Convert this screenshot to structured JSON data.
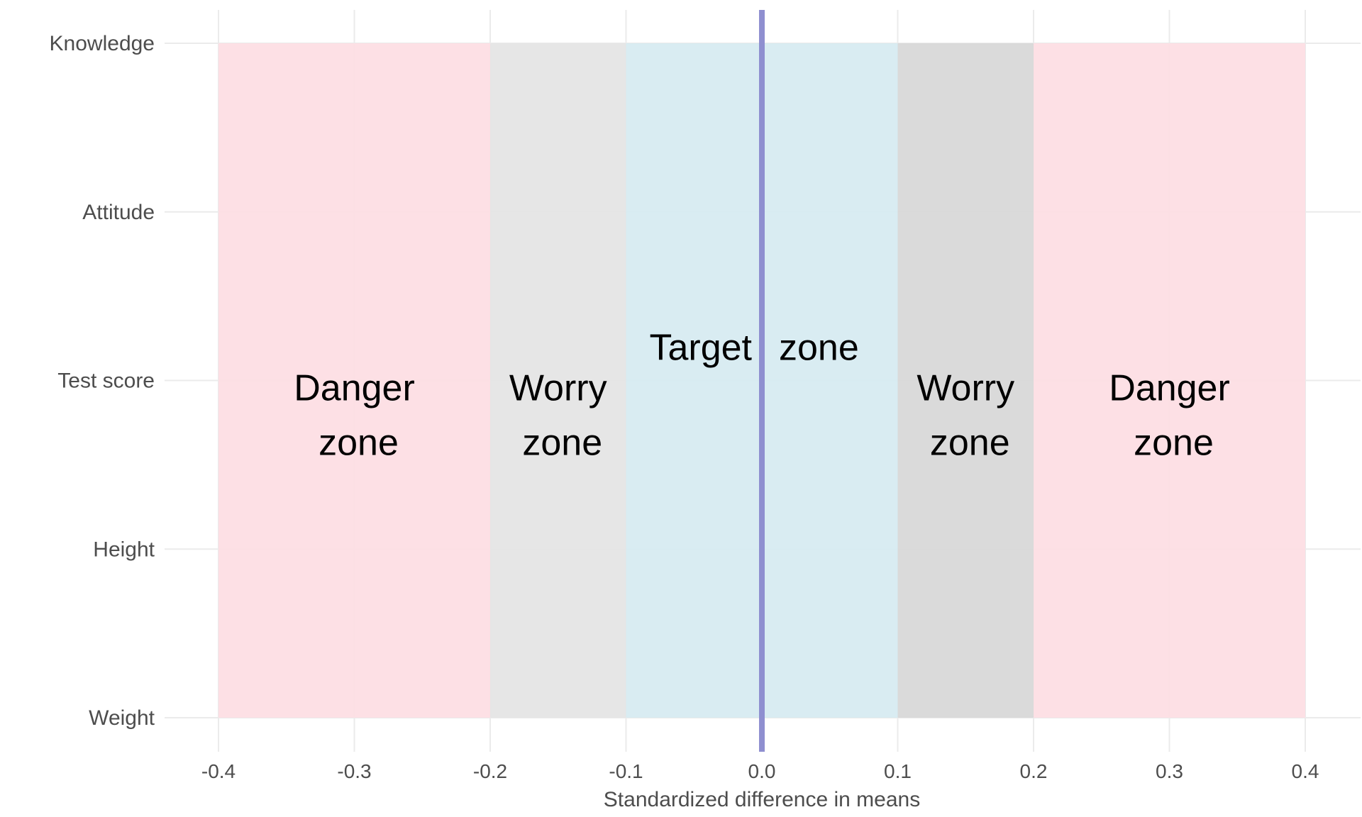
{
  "chart_data": {
    "type": "zone-chart",
    "xlabel": "Standardized difference in means",
    "ylabel": "",
    "xlim": [
      -0.4,
      0.4
    ],
    "x_ticks": [
      -0.4,
      -0.3,
      -0.2,
      -0.1,
      0.0,
      0.1,
      0.2,
      0.3,
      0.4
    ],
    "x_tick_labels": [
      "-0.4",
      "-0.3",
      "-0.2",
      "-0.1",
      "0.0",
      "0.1",
      "0.2",
      "0.3",
      "0.4"
    ],
    "categories": [
      "Knowledge",
      "Attitude",
      "Test score",
      "Height",
      "Weight"
    ],
    "grid": true,
    "reference_line": {
      "x": 0.0,
      "color": "#8f8fd0"
    },
    "zones": [
      {
        "x0": -0.4,
        "x1": -0.2,
        "color": "#fddde3",
        "label_lines": [
          "Danger",
          "zone"
        ],
        "label_x": -0.3
      },
      {
        "x0": -0.2,
        "x1": -0.1,
        "color": "#e4e4e4",
        "label_lines": [
          "Worry",
          "zone"
        ],
        "label_x": -0.15
      },
      {
        "x0": -0.1,
        "x1": 0.1,
        "color": "#d6eaf1",
        "label_lines": [
          "Target",
          "zone"
        ],
        "label_x": 0.0,
        "split_words": true
      },
      {
        "x0": 0.1,
        "x1": 0.2,
        "color": "#d7d7d7",
        "label_lines": [
          "Worry",
          "zone"
        ],
        "label_x": 0.15
      },
      {
        "x0": 0.2,
        "x1": 0.4,
        "color": "#fddde3",
        "label_lines": [
          "Danger",
          "zone"
        ],
        "label_x": 0.3
      }
    ]
  }
}
